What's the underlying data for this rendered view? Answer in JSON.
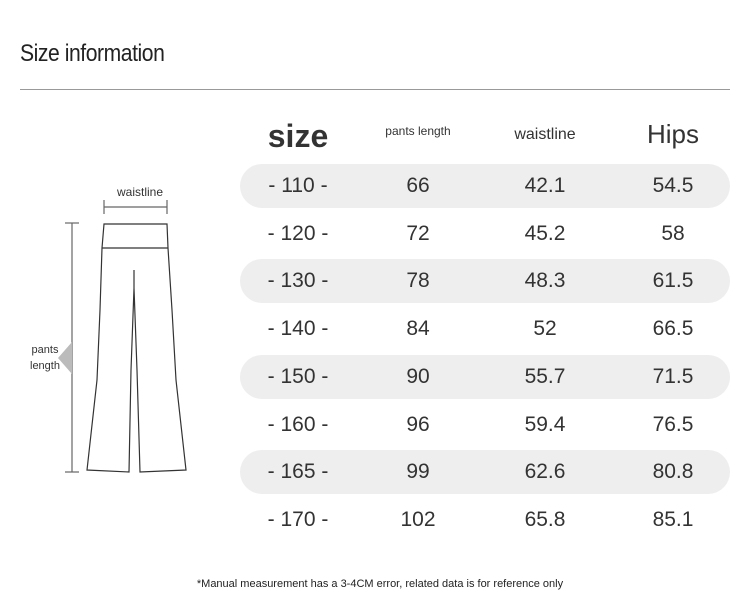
{
  "header": {
    "title": "Size information"
  },
  "diagram": {
    "waist_label": "waistline",
    "length_label_1": "pants",
    "length_label_2": "length"
  },
  "table": {
    "headers": [
      "size",
      "pants length",
      "waistline",
      "Hips"
    ],
    "rows": [
      [
        "- 110 -",
        "66",
        "42.1",
        "54.5"
      ],
      [
        "- 120 -",
        "72",
        "45.2",
        "58"
      ],
      [
        "- 130 -",
        "78",
        "48.3",
        "61.5"
      ],
      [
        "- 140 -",
        "84",
        "52",
        "66.5"
      ],
      [
        "- 150 -",
        "90",
        "55.7",
        "71.5"
      ],
      [
        "- 160 -",
        "96",
        "59.4",
        "76.5"
      ],
      [
        "- 165 -",
        "99",
        "62.6",
        "80.8"
      ],
      [
        "- 170 -",
        "102",
        "65.8",
        "85.1"
      ]
    ]
  },
  "footnote": "*Manual measurement has a 3-4CM error, related data is for reference only"
}
